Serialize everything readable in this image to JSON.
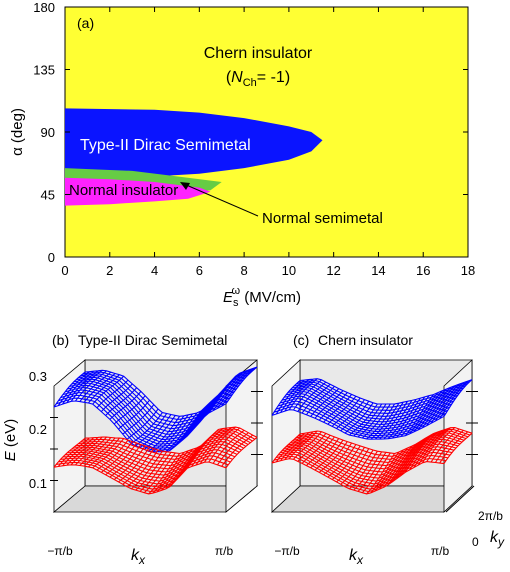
{
  "chart_data": [
    {
      "type": "heatmap",
      "panel_label": "(a)",
      "title": "",
      "xlabel": "E",
      "xlabel_sub": "s",
      "xlabel_sup": "ω",
      "xlabel_unit": " (MV/cm)",
      "ylabel": "α (deg)",
      "xlim": [
        0,
        18
      ],
      "ylim": [
        0,
        180
      ],
      "x_ticks": [
        0,
        2,
        4,
        6,
        8,
        10,
        12,
        14,
        16,
        18
      ],
      "y_ticks": [
        0,
        45,
        90,
        135,
        180
      ],
      "colors": {
        "chern_insulator": "#ffff33",
        "type2_dirac": "#0a14ff",
        "normal_semimetal": "#66cc44",
        "normal_insulator": "#ff22ff"
      },
      "regions": [
        {
          "name": "Chern insulator",
          "label_line1": "Chern insulator",
          "label_line2_parts": [
            "(",
            "N",
            "Ch",
            "= -1)"
          ]
        },
        {
          "name": "Type-II Dirac Semimetal",
          "label": "Type-II Dirac Semimetal",
          "boundary": [
            [
              0,
              107
            ],
            [
              4,
              106
            ],
            [
              6,
              104
            ],
            [
              8,
              100
            ],
            [
              10,
              94
            ],
            [
              11,
              90
            ],
            [
              11.5,
              84
            ],
            [
              11,
              76
            ],
            [
              10,
              70
            ],
            [
              8,
              64
            ],
            [
              6,
              60
            ],
            [
              4,
              58
            ],
            [
              0,
              58
            ]
          ]
        },
        {
          "name": "Normal semimetal",
          "label": "Normal semimetal",
          "boundary": [
            [
              0,
              64
            ],
            [
              3,
              62
            ],
            [
              5,
              58
            ],
            [
              7,
              54
            ],
            [
              6.5,
              48
            ],
            [
              5,
              46
            ],
            [
              3,
              45
            ],
            [
              0,
              45
            ]
          ]
        },
        {
          "name": "Normal insulator",
          "label": "Normal insulator",
          "boundary": [
            [
              0,
              57
            ],
            [
              2,
              56
            ],
            [
              4,
              54
            ],
            [
              6,
              50
            ],
            [
              6.5,
              47
            ],
            [
              5.5,
              42
            ],
            [
              4,
              40
            ],
            [
              2,
              38
            ],
            [
              0,
              37
            ]
          ]
        }
      ]
    },
    {
      "type": "surface3d",
      "panel_label": "(b)",
      "title": "Type-II Dirac Semimetal",
      "zlabel": "E (eV)",
      "zlim": [
        0,
        0.3
      ],
      "z_ticks": [
        "0.1",
        "0.2",
        "0.3"
      ],
      "x_tick_labels": [
        "−π/b",
        "π/b"
      ],
      "xlabel": "k",
      "xlabel_sub": "x",
      "series": [
        {
          "name": "upper band",
          "color": "#0000ff",
          "profile": [
            0.26,
            0.27,
            0.26,
            0.22,
            0.17,
            0.155,
            0.16,
            0.2,
            0.25,
            0.27
          ]
        },
        {
          "name": "lower band",
          "color": "#ff0000",
          "profile": [
            0.11,
            0.115,
            0.11,
            0.09,
            0.07,
            0.06,
            0.075,
            0.12,
            0.13,
            0.11
          ]
        }
      ]
    },
    {
      "type": "surface3d",
      "panel_label": "(c)",
      "title": "Chern insulator",
      "x_tick_labels": [
        "−π/b",
        "π/b"
      ],
      "xlabel": "k",
      "xlabel_sub": "x",
      "y_tick_labels": [
        "0",
        "2π/b"
      ],
      "ylabel": "k",
      "ylabel_sub": "y",
      "series": [
        {
          "name": "upper band",
          "color": "#0000ff",
          "profile": [
            0.24,
            0.25,
            0.23,
            0.21,
            0.19,
            0.185,
            0.19,
            0.2,
            0.22,
            0.24
          ]
        },
        {
          "name": "lower band",
          "color": "#ff0000",
          "profile": [
            0.12,
            0.13,
            0.11,
            0.09,
            0.07,
            0.06,
            0.08,
            0.11,
            0.13,
            0.12
          ]
        }
      ]
    }
  ]
}
